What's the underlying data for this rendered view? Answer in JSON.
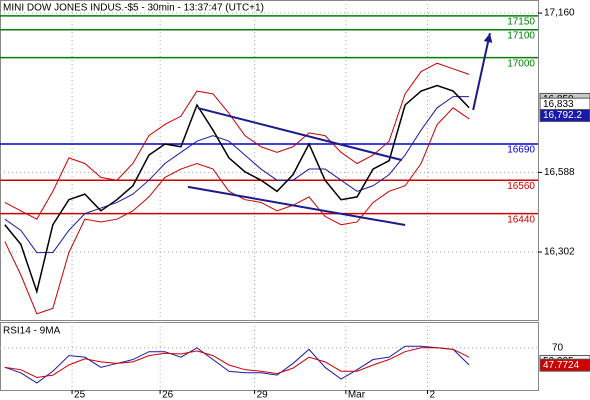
{
  "chart_data": {
    "type": "line",
    "title": "MINI DOW JONES INDUS.-$5 - 30min - 13:37:47 (UTC+1)",
    "grid": true,
    "xlim": [
      -0.3,
      33.3
    ],
    "xticks": [
      {
        "value": 4.2,
        "label": "25"
      },
      {
        "value": 9.7,
        "label": "26"
      },
      {
        "value": 15.6,
        "label": "29"
      },
      {
        "value": 21.3,
        "label": "Mar"
      },
      {
        "value": 26.4,
        "label": "2"
      }
    ],
    "ylim": [
      16058,
      17207
    ],
    "yticks": [
      {
        "value": 17160,
        "label": "17,160"
      },
      {
        "value": 16588,
        "label": "16,588"
      },
      {
        "value": 16302,
        "label": "16,302"
      }
    ],
    "series": [
      {
        "color": "#cc0000",
        "values": [
          16480,
          16450,
          16420,
          16520,
          16640,
          16620,
          16570,
          16560,
          16620,
          16720,
          16760,
          16790,
          16880,
          16870,
          16800,
          16720,
          16680,
          16660,
          16680,
          16730,
          16720,
          16660,
          16620,
          16650,
          16700,
          16870,
          16950,
          16980,
          16960,
          16940
        ]
      },
      {
        "color": "#cc0000",
        "values": [
          16340,
          16220,
          16080,
          16100,
          16300,
          16420,
          16410,
          16420,
          16450,
          16500,
          16570,
          16600,
          16620,
          16600,
          16520,
          16490,
          16480,
          16450,
          16470,
          16500,
          16430,
          16400,
          16410,
          16480,
          16520,
          16540,
          16620,
          16760,
          16820,
          16780
        ]
      },
      {
        "color": "#1a1aaa",
        "values": [
          16420,
          16380,
          16300,
          16300,
          16380,
          16440,
          16460,
          16480,
          16510,
          16560,
          16620,
          16660,
          16700,
          16720,
          16700,
          16650,
          16600,
          16560,
          16560,
          16600,
          16600,
          16560,
          16520,
          16540,
          16580,
          16650,
          16740,
          16820,
          16860,
          16860
        ]
      },
      {
        "color": "#000000",
        "values": [
          16400,
          16330,
          16160,
          16400,
          16490,
          16510,
          16450,
          16490,
          16540,
          16650,
          16690,
          16680,
          16830,
          16740,
          16640,
          16590,
          16560,
          16520,
          16580,
          16690,
          16560,
          16490,
          16500,
          16600,
          16630,
          16830,
          16880,
          16900,
          16880,
          16820
        ]
      }
    ],
    "levels": [
      {
        "value": 17150,
        "color": "#008000"
      },
      {
        "value": 17100,
        "color": "#008000"
      },
      {
        "value": 17000,
        "color": "#008000"
      },
      {
        "value": 16690,
        "color": "#0000cc"
      },
      {
        "value": 16560,
        "color": "#cc0000"
      },
      {
        "value": 16440,
        "color": "#cc0000"
      }
    ],
    "trendlines": [
      {
        "color": "#1a1a8c",
        "x": [
          12.06,
          24.8
        ],
        "y": [
          16819,
          16632
        ]
      },
      {
        "color": "#1a1a8c",
        "x": [
          11.44,
          25.0
        ],
        "y": [
          16536,
          16399
        ]
      },
      {
        "color": "#1a1a8c",
        "x": [
          29.25,
          30.3
        ],
        "y": [
          16812,
          17088
        ],
        "arrow": true
      }
    ],
    "price_tags": [
      {
        "value": 16850,
        "label": "16,850",
        "color": "#c8c8c8",
        "text_color": "#000000"
      },
      {
        "value": 16833,
        "label": "16,833",
        "color": "#ffffff",
        "text_color": "#000000"
      },
      {
        "value": 16792.2,
        "label": "16,792.2",
        "color": "#1a1aaa",
        "text_color": "#ffffff"
      }
    ],
    "rsi": {
      "title": "RSI14 - 9MA",
      "ylim": [
        16,
        103
      ],
      "yticks": [
        70
      ],
      "series": [
        {
          "color": "#1a1aaa",
          "values": [
            45,
            38,
            25,
            40,
            60,
            58,
            45,
            50,
            55,
            65,
            65,
            58,
            70,
            55,
            40,
            38,
            38,
            35,
            50,
            68,
            45,
            30,
            42,
            55,
            58,
            72,
            72,
            70,
            68,
            48
          ]
        },
        {
          "color": "#cc0000",
          "values": [
            45,
            42,
            32,
            35,
            48,
            56,
            52,
            50,
            52,
            60,
            63,
            62,
            66,
            60,
            48,
            42,
            40,
            37,
            44,
            58,
            52,
            40,
            40,
            48,
            55,
            65,
            70,
            70,
            68,
            58
          ]
        }
      ],
      "tags": [
        {
          "value": 52.385,
          "color": "#ffffff",
          "text_color": "#000000"
        },
        {
          "value": 47.7724,
          "color": "#cc0000",
          "text_color": "#ffffff"
        }
      ]
    }
  }
}
